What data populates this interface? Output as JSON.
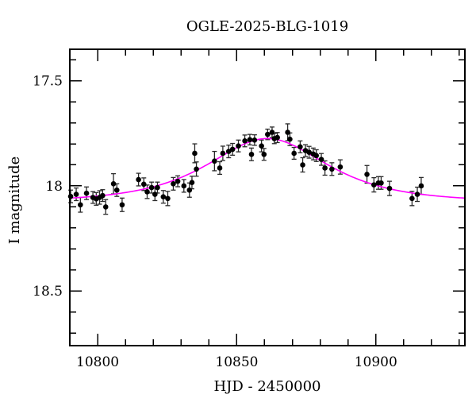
{
  "figure": {
    "title": "OGLE-2025-BLG-1019",
    "xlabel": "HJD - 2450000",
    "ylabel": "I magnitude"
  },
  "chart_data": {
    "type": "scatter",
    "title": "OGLE-2025-BLG-1019",
    "xlabel": "HJD - 2450000",
    "ylabel": "I magnitude",
    "xlim": [
      10790,
      10932
    ],
    "ylim": [
      18.76,
      17.35
    ],
    "y_axis_inverted": true,
    "grid": false,
    "legend": "none",
    "x_ticks": {
      "major": [
        {
          "v": 10800,
          "label": "10800"
        },
        {
          "v": 10850,
          "label": "10850"
        },
        {
          "v": 10900,
          "label": "10900"
        }
      ],
      "minor_step": 10
    },
    "y_ticks": {
      "major": [
        {
          "v": 17.5,
          "label": "17.5"
        },
        {
          "v": 18.0,
          "label": "18"
        },
        {
          "v": 18.5,
          "label": "18.5"
        }
      ],
      "minor_step": 0.1
    },
    "colors": {
      "background": "#ffffff",
      "frame": "#000000",
      "points": "#000000",
      "error_bars": "#2a2a2a",
      "model_curve": "#ff00ff"
    },
    "series": [
      {
        "name": "I-band photometry",
        "type": "scatter_errorbar",
        "points_format": [
          "hjd_minus_2450000",
          "I_mag",
          "mag_error"
        ],
        "points": [
          [
            10790.3,
            18.05,
            0.03
          ],
          [
            10792.3,
            18.04,
            0.03
          ],
          [
            10793.8,
            18.09,
            0.035
          ],
          [
            10796.0,
            18.035,
            0.03
          ],
          [
            10798.3,
            18.055,
            0.028
          ],
          [
            10799.5,
            18.062,
            0.03
          ],
          [
            10800.7,
            18.055,
            0.032
          ],
          [
            10801.8,
            18.046,
            0.028
          ],
          [
            10802.9,
            18.1,
            0.035
          ],
          [
            10805.7,
            17.99,
            0.048
          ],
          [
            10806.9,
            18.02,
            0.03
          ],
          [
            10808.8,
            18.09,
            0.032
          ],
          [
            10814.7,
            17.97,
            0.03
          ],
          [
            10816.6,
            17.992,
            0.03
          ],
          [
            10817.8,
            18.028,
            0.032
          ],
          [
            10819.4,
            18.008,
            0.026
          ],
          [
            10820.6,
            18.04,
            0.03
          ],
          [
            10821.5,
            18.008,
            0.026
          ],
          [
            10823.6,
            18.052,
            0.03
          ],
          [
            10825.2,
            18.06,
            0.034
          ],
          [
            10827.2,
            17.99,
            0.03
          ],
          [
            10828.8,
            17.978,
            0.026
          ],
          [
            10831.0,
            18.0,
            0.03
          ],
          [
            10833.0,
            18.02,
            0.034
          ],
          [
            10833.9,
            17.984,
            0.03
          ],
          [
            10834.9,
            17.845,
            0.045
          ],
          [
            10835.5,
            17.92,
            0.034
          ],
          [
            10842.0,
            17.882,
            0.046
          ],
          [
            10843.9,
            17.915,
            0.03
          ],
          [
            10845.0,
            17.845,
            0.034
          ],
          [
            10847.1,
            17.836,
            0.03
          ],
          [
            10848.5,
            17.826,
            0.028
          ],
          [
            10850.6,
            17.81,
            0.028
          ],
          [
            10852.9,
            17.786,
            0.028
          ],
          [
            10854.7,
            17.78,
            0.025
          ],
          [
            10855.3,
            17.85,
            0.03
          ],
          [
            10856.4,
            17.782,
            0.025
          ],
          [
            10858.9,
            17.81,
            0.028
          ],
          [
            10859.8,
            17.85,
            0.028
          ],
          [
            10861.1,
            17.755,
            0.025
          ],
          [
            10862.7,
            17.745,
            0.025
          ],
          [
            10863.5,
            17.775,
            0.024
          ],
          [
            10864.6,
            17.77,
            0.024
          ],
          [
            10868.3,
            17.745,
            0.04
          ],
          [
            10869.1,
            17.778,
            0.03
          ],
          [
            10870.6,
            17.845,
            0.028
          ],
          [
            10872.8,
            17.814,
            0.028
          ],
          [
            10873.7,
            17.9,
            0.034
          ],
          [
            10874.7,
            17.832,
            0.028
          ],
          [
            10876.0,
            17.84,
            0.028
          ],
          [
            10877.5,
            17.848,
            0.028
          ],
          [
            10878.6,
            17.856,
            0.028
          ],
          [
            10880.4,
            17.874,
            0.028
          ],
          [
            10881.7,
            17.915,
            0.034
          ],
          [
            10884.2,
            17.92,
            0.03
          ],
          [
            10887.2,
            17.91,
            0.034
          ],
          [
            10896.8,
            17.945,
            0.042
          ],
          [
            10899.3,
            17.995,
            0.034
          ],
          [
            10900.9,
            17.986,
            0.03
          ],
          [
            10901.9,
            17.986,
            0.03
          ],
          [
            10904.9,
            18.012,
            0.034
          ],
          [
            10913.0,
            18.06,
            0.034
          ],
          [
            10914.9,
            18.04,
            0.034
          ],
          [
            10916.3,
            18.0,
            0.04
          ]
        ]
      },
      {
        "name": "microlensing model",
        "type": "line",
        "model": {
          "kind": "paczynski",
          "t0": 10861,
          "tE": 25.5,
          "u0": 1.03,
          "I_base": 18.077
        }
      }
    ]
  }
}
